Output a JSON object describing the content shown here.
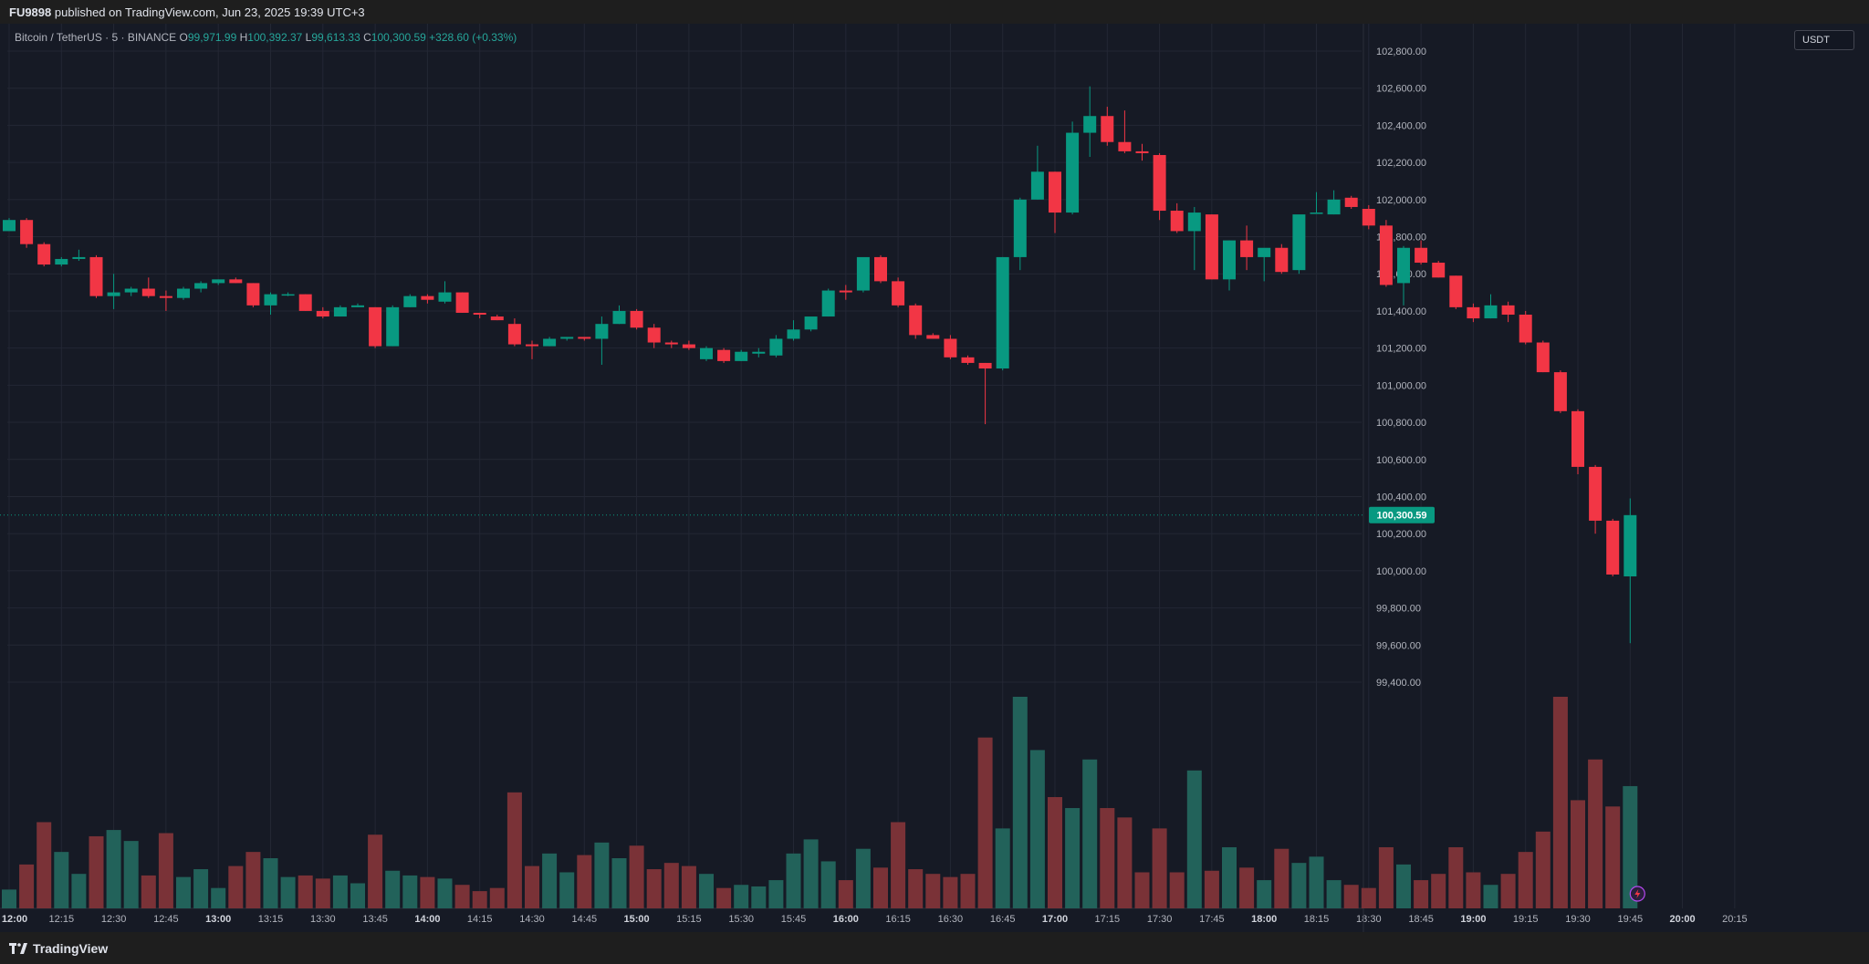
{
  "header": {
    "author": "FU9898",
    "published_text": "published on TradingView.com, Jun 23, 2025 19:39 UTC+3"
  },
  "legend": {
    "symbol": "Bitcoin / TetherUS · 5 · BINANCE",
    "open_label": "O",
    "open": "99,971.99",
    "high_label": "H",
    "high": "100,392.37",
    "low_label": "L",
    "low": "99,613.33",
    "close_label": "C",
    "close": "100,300.59",
    "change": "+328.60 (+0.33%)"
  },
  "currency": "USDT",
  "price_label": "100,300.59",
  "footer": {
    "brand": "TradingView"
  },
  "colors": {
    "up": "#089981",
    "down": "#f23645",
    "vol_up": "#22625a",
    "vol_down": "#7a3237",
    "background": "#161a25",
    "grid": "#232734",
    "text": "#b2b5be"
  },
  "icons": [
    "lightning-icon",
    "tradingview-logo-icon"
  ],
  "chart_data": {
    "type": "candlestick",
    "timeframe": "5",
    "title": "Bitcoin / TetherUS · 5 · BINANCE",
    "x_ticks": [
      "12:00",
      "12:15",
      "12:30",
      "12:45",
      "13:00",
      "13:15",
      "13:30",
      "13:45",
      "14:00",
      "14:15",
      "14:30",
      "14:45",
      "15:00",
      "15:15",
      "15:30",
      "15:45",
      "16:00",
      "16:15",
      "16:30",
      "16:45",
      "17:00",
      "17:15",
      "17:30",
      "17:45",
      "18:00",
      "18:15",
      "18:30",
      "18:45",
      "19:00",
      "19:15",
      "19:30",
      "19:45",
      "20:00",
      "20:15"
    ],
    "x_ticks_bold": [
      "12:00",
      "13:00",
      "14:00",
      "15:00",
      "16:00",
      "17:00",
      "18:00",
      "19:00",
      "20:00"
    ],
    "y_ticks": [
      "102,800.00",
      "102,600.00",
      "102,400.00",
      "102,200.00",
      "102,000.00",
      "101,800.00",
      "101,600.00",
      "101,400.00",
      "101,200.00",
      "101,000.00",
      "100,800.00",
      "100,600.00",
      "100,400.00",
      "100,200.00",
      "100,000.00",
      "99,800.00",
      "99,600.00",
      "99,400.00"
    ],
    "ylim": [
      99330,
      102890
    ],
    "last_price": 100300.59,
    "candles": [
      {
        "o": 101830,
        "h": 101900,
        "l": 101830,
        "c": 101890,
        "v": 12
      },
      {
        "o": 101890,
        "h": 101900,
        "l": 101740,
        "c": 101760,
        "v": 28
      },
      {
        "o": 101760,
        "h": 101770,
        "l": 101640,
        "c": 101650,
        "v": 55
      },
      {
        "o": 101650,
        "h": 101690,
        "l": 101640,
        "c": 101680,
        "v": 36
      },
      {
        "o": 101680,
        "h": 101730,
        "l": 101670,
        "c": 101690,
        "v": 22
      },
      {
        "o": 101690,
        "h": 101700,
        "l": 101470,
        "c": 101480,
        "v": 46
      },
      {
        "o": 101480,
        "h": 101600,
        "l": 101410,
        "c": 101500,
        "v": 50
      },
      {
        "o": 101500,
        "h": 101530,
        "l": 101480,
        "c": 101520,
        "v": 43
      },
      {
        "o": 101520,
        "h": 101580,
        "l": 101470,
        "c": 101480,
        "v": 21
      },
      {
        "o": 101480,
        "h": 101510,
        "l": 101400,
        "c": 101470,
        "v": 48
      },
      {
        "o": 101470,
        "h": 101530,
        "l": 101460,
        "c": 101520,
        "v": 20
      },
      {
        "o": 101520,
        "h": 101560,
        "l": 101500,
        "c": 101550,
        "v": 25
      },
      {
        "o": 101550,
        "h": 101570,
        "l": 101540,
        "c": 101570,
        "v": 13
      },
      {
        "o": 101570,
        "h": 101580,
        "l": 101550,
        "c": 101550,
        "v": 27
      },
      {
        "o": 101550,
        "h": 101550,
        "l": 101420,
        "c": 101430,
        "v": 36
      },
      {
        "o": 101430,
        "h": 101500,
        "l": 101380,
        "c": 101490,
        "v": 32
      },
      {
        "o": 101490,
        "h": 101500,
        "l": 101480,
        "c": 101490,
        "v": 20
      },
      {
        "o": 101490,
        "h": 101490,
        "l": 101400,
        "c": 101400,
        "v": 21
      },
      {
        "o": 101400,
        "h": 101420,
        "l": 101360,
        "c": 101370,
        "v": 19
      },
      {
        "o": 101370,
        "h": 101430,
        "l": 101370,
        "c": 101420,
        "v": 21
      },
      {
        "o": 101420,
        "h": 101440,
        "l": 101420,
        "c": 101430,
        "v": 16
      },
      {
        "o": 101420,
        "h": 101420,
        "l": 101200,
        "c": 101210,
        "v": 47
      },
      {
        "o": 101210,
        "h": 101430,
        "l": 101210,
        "c": 101420,
        "v": 24
      },
      {
        "o": 101420,
        "h": 101490,
        "l": 101420,
        "c": 101480,
        "v": 21
      },
      {
        "o": 101480,
        "h": 101490,
        "l": 101440,
        "c": 101460,
        "v": 20
      },
      {
        "o": 101450,
        "h": 101560,
        "l": 101440,
        "c": 101500,
        "v": 19
      },
      {
        "o": 101500,
        "h": 101500,
        "l": 101390,
        "c": 101390,
        "v": 15
      },
      {
        "o": 101390,
        "h": 101390,
        "l": 101360,
        "c": 101380,
        "v": 11
      },
      {
        "o": 101370,
        "h": 101380,
        "l": 101350,
        "c": 101350,
        "v": 13
      },
      {
        "o": 101330,
        "h": 101360,
        "l": 101210,
        "c": 101220,
        "v": 74
      },
      {
        "o": 101220,
        "h": 101240,
        "l": 101140,
        "c": 101210,
        "v": 27
      },
      {
        "o": 101210,
        "h": 101260,
        "l": 101210,
        "c": 101250,
        "v": 35
      },
      {
        "o": 101250,
        "h": 101260,
        "l": 101240,
        "c": 101260,
        "v": 23
      },
      {
        "o": 101260,
        "h": 101260,
        "l": 101240,
        "c": 101250,
        "v": 34
      },
      {
        "o": 101250,
        "h": 101370,
        "l": 101110,
        "c": 101330,
        "v": 42
      },
      {
        "o": 101330,
        "h": 101430,
        "l": 101330,
        "c": 101400,
        "v": 32
      },
      {
        "o": 101400,
        "h": 101410,
        "l": 101300,
        "c": 101310,
        "v": 40
      },
      {
        "o": 101310,
        "h": 101330,
        "l": 101200,
        "c": 101230,
        "v": 25
      },
      {
        "o": 101230,
        "h": 101240,
        "l": 101200,
        "c": 101220,
        "v": 29
      },
      {
        "o": 101220,
        "h": 101240,
        "l": 101190,
        "c": 101200,
        "v": 27
      },
      {
        "o": 101140,
        "h": 101210,
        "l": 101130,
        "c": 101200,
        "v": 22
      },
      {
        "o": 101190,
        "h": 101200,
        "l": 101120,
        "c": 101130,
        "v": 13
      },
      {
        "o": 101130,
        "h": 101190,
        "l": 101130,
        "c": 101180,
        "v": 15
      },
      {
        "o": 101170,
        "h": 101200,
        "l": 101150,
        "c": 101180,
        "v": 14
      },
      {
        "o": 101160,
        "h": 101270,
        "l": 101150,
        "c": 101250,
        "v": 18
      },
      {
        "o": 101250,
        "h": 101350,
        "l": 101240,
        "c": 101300,
        "v": 35
      },
      {
        "o": 101300,
        "h": 101360,
        "l": 101290,
        "c": 101370,
        "v": 44
      },
      {
        "o": 101370,
        "h": 101520,
        "l": 101370,
        "c": 101510,
        "v": 30
      },
      {
        "o": 101510,
        "h": 101540,
        "l": 101460,
        "c": 101500,
        "v": 18
      },
      {
        "o": 101510,
        "h": 101680,
        "l": 101500,
        "c": 101690,
        "v": 38
      },
      {
        "o": 101690,
        "h": 101700,
        "l": 101550,
        "c": 101560,
        "v": 26
      },
      {
        "o": 101560,
        "h": 101580,
        "l": 101420,
        "c": 101430,
        "v": 55
      },
      {
        "o": 101430,
        "h": 101440,
        "l": 101250,
        "c": 101270,
        "v": 25
      },
      {
        "o": 101270,
        "h": 101280,
        "l": 101250,
        "c": 101250,
        "v": 22
      },
      {
        "o": 101250,
        "h": 101270,
        "l": 101140,
        "c": 101150,
        "v": 20
      },
      {
        "o": 101150,
        "h": 101160,
        "l": 101110,
        "c": 101120,
        "v": 22
      },
      {
        "o": 101120,
        "h": 101120,
        "l": 100790,
        "c": 101090,
        "v": 109
      },
      {
        "o": 101090,
        "h": 101690,
        "l": 101080,
        "c": 101690,
        "v": 51
      },
      {
        "o": 101690,
        "h": 102010,
        "l": 101620,
        "c": 102000,
        "v": 135
      },
      {
        "o": 102000,
        "h": 102290,
        "l": 102000,
        "c": 102150,
        "v": 101
      },
      {
        "o": 102150,
        "h": 102150,
        "l": 101820,
        "c": 101930,
        "v": 71
      },
      {
        "o": 101930,
        "h": 102420,
        "l": 101920,
        "c": 102360,
        "v": 64
      },
      {
        "o": 102360,
        "h": 102610,
        "l": 102230,
        "c": 102450,
        "v": 95
      },
      {
        "o": 102450,
        "h": 102500,
        "l": 102290,
        "c": 102310,
        "v": 64
      },
      {
        "o": 102310,
        "h": 102480,
        "l": 102250,
        "c": 102260,
        "v": 58
      },
      {
        "o": 102260,
        "h": 102300,
        "l": 102210,
        "c": 102250,
        "v": 23
      },
      {
        "o": 102240,
        "h": 102250,
        "l": 101890,
        "c": 101940,
        "v": 51
      },
      {
        "o": 101940,
        "h": 101980,
        "l": 101820,
        "c": 101830,
        "v": 23
      },
      {
        "o": 101830,
        "h": 101960,
        "l": 101620,
        "c": 101930,
        "v": 88
      },
      {
        "o": 101920,
        "h": 101920,
        "l": 101570,
        "c": 101570,
        "v": 24
      },
      {
        "o": 101570,
        "h": 101780,
        "l": 101510,
        "c": 101780,
        "v": 39
      },
      {
        "o": 101780,
        "h": 101860,
        "l": 101620,
        "c": 101690,
        "v": 26
      },
      {
        "o": 101690,
        "h": 101710,
        "l": 101560,
        "c": 101740,
        "v": 18
      },
      {
        "o": 101740,
        "h": 101760,
        "l": 101600,
        "c": 101610,
        "v": 38
      },
      {
        "o": 101620,
        "h": 101900,
        "l": 101600,
        "c": 101920,
        "v": 29
      },
      {
        "o": 101930,
        "h": 102040,
        "l": 101930,
        "c": 101930,
        "v": 33
      },
      {
        "o": 101920,
        "h": 102050,
        "l": 101920,
        "c": 102000,
        "v": 18
      },
      {
        "o": 102010,
        "h": 102020,
        "l": 101950,
        "c": 101960,
        "v": 15
      },
      {
        "o": 101950,
        "h": 101970,
        "l": 101840,
        "c": 101860,
        "v": 13
      },
      {
        "o": 101860,
        "h": 101890,
        "l": 101530,
        "c": 101540,
        "v": 39
      },
      {
        "o": 101550,
        "h": 101750,
        "l": 101430,
        "c": 101740,
        "v": 28
      },
      {
        "o": 101740,
        "h": 101780,
        "l": 101650,
        "c": 101660,
        "v": 18
      },
      {
        "o": 101660,
        "h": 101670,
        "l": 101580,
        "c": 101580,
        "v": 22
      },
      {
        "o": 101590,
        "h": 101590,
        "l": 101410,
        "c": 101420,
        "v": 39
      },
      {
        "o": 101420,
        "h": 101440,
        "l": 101340,
        "c": 101360,
        "v": 23
      },
      {
        "o": 101360,
        "h": 101490,
        "l": 101360,
        "c": 101430,
        "v": 15
      },
      {
        "o": 101430,
        "h": 101450,
        "l": 101340,
        "c": 101380,
        "v": 22
      },
      {
        "o": 101380,
        "h": 101400,
        "l": 101220,
        "c": 101230,
        "v": 36
      },
      {
        "o": 101230,
        "h": 101240,
        "l": 101070,
        "c": 101070,
        "v": 49
      },
      {
        "o": 101070,
        "h": 101080,
        "l": 100850,
        "c": 100860,
        "v": 135
      },
      {
        "o": 100860,
        "h": 100870,
        "l": 100520,
        "c": 100560,
        "v": 69
      },
      {
        "o": 100560,
        "h": 100570,
        "l": 100200,
        "c": 100270,
        "v": 95
      },
      {
        "o": 100270,
        "h": 100280,
        "l": 99970,
        "c": 99980,
        "v": 65
      },
      {
        "o": 99970,
        "h": 100390,
        "l": 99610,
        "c": 100300,
        "v": 78
      }
    ]
  }
}
